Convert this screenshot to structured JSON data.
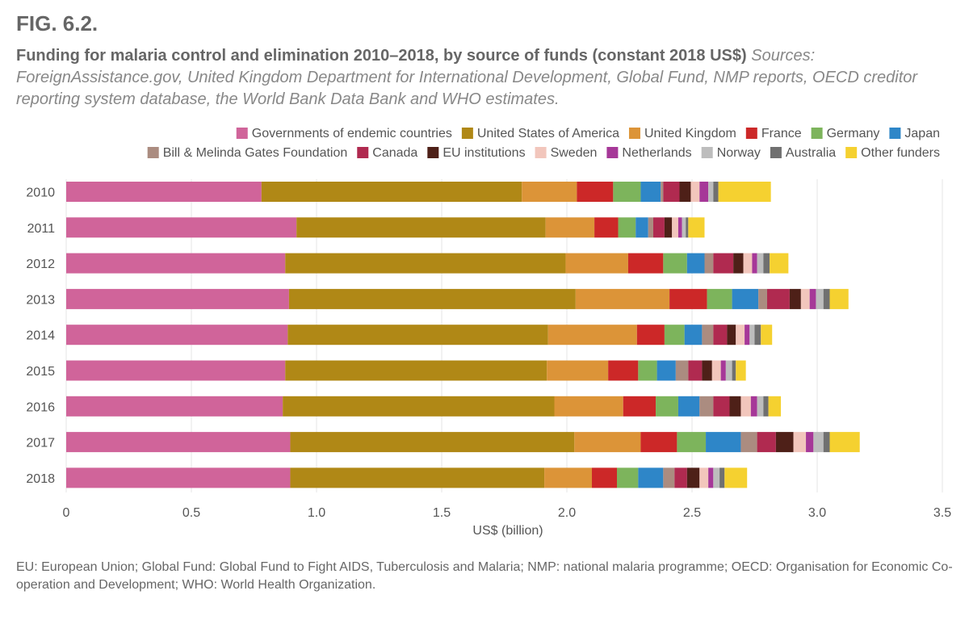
{
  "figure": {
    "label": "FIG. 6.2.",
    "title": "Funding for malaria control and elimination 2010–2018, by source of funds (constant 2018 US$)",
    "sources": "Sources: ForeignAssistance.gov, United Kingdom Department for International Development, Global Fund, NMP reports, OECD creditor reporting system database, the World Bank Data Bank and WHO estimates.",
    "footnote": "EU: European Union; Global Fund: Global Fund to Fight AIDS, Tuberculosis and Malaria; NMP: national malaria programme; OECD: Organisation for Economic Co-operation and Development; WHO: World Health Organization."
  },
  "chart_data": {
    "type": "bar",
    "orientation": "horizontal",
    "stacked": true,
    "categories": [
      "2010",
      "2011",
      "2012",
      "2013",
      "2014",
      "2015",
      "2016",
      "2017",
      "2018"
    ],
    "xlabel": "US$ (billion)",
    "ylabel": "",
    "xlim": [
      0,
      3.5
    ],
    "xticks": [
      "0",
      "0.5",
      "1.0",
      "1.5",
      "2.0",
      "2.5",
      "3.0",
      "3.5"
    ],
    "grid": true,
    "legend_position": "top",
    "series": [
      {
        "name": "Governments of endemic countries",
        "color": "#d0649a",
        "values": [
          0.78,
          0.92,
          0.875,
          0.89,
          0.885,
          0.875,
          0.865,
          0.895,
          0.895
        ]
      },
      {
        "name": "United States of America",
        "color": "#b08816",
        "values": [
          1.04,
          0.995,
          1.12,
          1.145,
          1.04,
          1.045,
          1.085,
          1.135,
          1.015
        ]
      },
      {
        "name": "United Kingdom",
        "color": "#dc9438",
        "values": [
          0.22,
          0.195,
          0.25,
          0.375,
          0.355,
          0.245,
          0.275,
          0.265,
          0.19
        ]
      },
      {
        "name": "France",
        "color": "#cc2828",
        "values": [
          0.145,
          0.095,
          0.14,
          0.15,
          0.11,
          0.12,
          0.13,
          0.145,
          0.1
        ]
      },
      {
        "name": "Germany",
        "color": "#7db45c",
        "values": [
          0.11,
          0.07,
          0.095,
          0.1,
          0.08,
          0.075,
          0.09,
          0.115,
          0.085
        ]
      },
      {
        "name": "Japan",
        "color": "#2e86c8",
        "values": [
          0.08,
          0.05,
          0.07,
          0.105,
          0.07,
          0.075,
          0.085,
          0.14,
          0.1
        ]
      },
      {
        "name": "Bill & Melinda Gates Foundation",
        "color": "#ab8c80",
        "values": [
          0.01,
          0.02,
          0.035,
          0.035,
          0.045,
          0.05,
          0.055,
          0.065,
          0.045
        ]
      },
      {
        "name": "Canada",
        "color": "#b02a50",
        "values": [
          0.065,
          0.045,
          0.08,
          0.09,
          0.055,
          0.055,
          0.065,
          0.075,
          0.05
        ]
      },
      {
        "name": "EU institutions",
        "color": "#4e2018",
        "values": [
          0.045,
          0.03,
          0.04,
          0.045,
          0.035,
          0.04,
          0.045,
          0.07,
          0.05
        ]
      },
      {
        "name": "Sweden",
        "color": "#f2c6bc",
        "values": [
          0.035,
          0.025,
          0.035,
          0.035,
          0.035,
          0.035,
          0.04,
          0.05,
          0.035
        ]
      },
      {
        "name": "Netherlands",
        "color": "#a63898",
        "values": [
          0.035,
          0.015,
          0.02,
          0.025,
          0.02,
          0.02,
          0.025,
          0.03,
          0.02
        ]
      },
      {
        "name": "Norway",
        "color": "#bdbdbd",
        "values": [
          0.02,
          0.015,
          0.025,
          0.03,
          0.02,
          0.025,
          0.025,
          0.04,
          0.025
        ]
      },
      {
        "name": "Australia",
        "color": "#707070",
        "values": [
          0.02,
          0.01,
          0.025,
          0.025,
          0.025,
          0.015,
          0.02,
          0.025,
          0.02
        ]
      },
      {
        "name": "Other funders",
        "color": "#f5d130",
        "values": [
          0.21,
          0.065,
          0.075,
          0.075,
          0.045,
          0.04,
          0.05,
          0.12,
          0.09
        ]
      }
    ]
  }
}
